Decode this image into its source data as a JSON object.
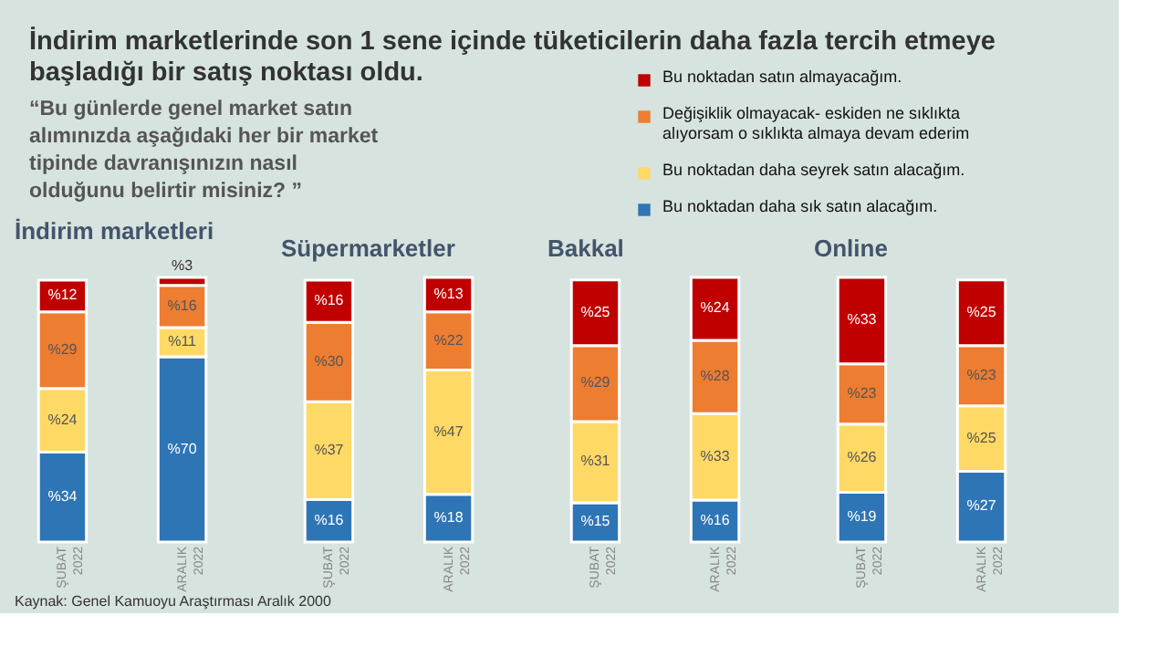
{
  "chart_data": [
    {
      "type": "bar",
      "stacked": true,
      "title": "İndirim marketleri",
      "categories": [
        "ŞUBAT 2022",
        "ARALIK 2022"
      ],
      "legend": "top right",
      "annotations": [
        "İndirim marketlerinde son 1 sene içinde tüketicilerin daha fazla tercih etmeye başladığı bir satış noktası oldu.",
        "“Bu günlerde genel market satın alımınızda aşağıdaki her bir market tipinde davranışınızın nasıl olduğunu belirtir misiniz? ”",
        "Kaynak: Genel Kamuoyu Araştırması Aralık 2000"
      ],
      "series": [
        {
          "name": "Bu noktadan daha sık satın alacağım.",
          "color": "#2e75b6",
          "values": [
            34,
            70
          ],
          "value_labels": [
            "%34",
            "%70"
          ]
        },
        {
          "name": "Bu noktadan daha seyrek satın alacağım.",
          "color": "#ffd966",
          "values": [
            24,
            11
          ],
          "value_labels": [
            "%24",
            "%11"
          ]
        },
        {
          "name": "Değişiklik olmayacak- eskiden ne sıklıkta alıyorsam o sıklıkta almaya  devam ederim",
          "color": "#ed7d31",
          "values": [
            29,
            16
          ],
          "value_labels": [
            "%29",
            "%16"
          ]
        },
        {
          "name": "Bu noktadan satın almayacağım.",
          "color": "#c00000",
          "values": [
            12,
            3
          ],
          "value_labels": [
            "%12",
            "%3"
          ]
        }
      ]
    },
    {
      "type": "bar",
      "stacked": true,
      "title": "Süpermarketler",
      "categories": [
        "ŞUBAT 2022",
        "ARALIK 2022"
      ],
      "series": [
        {
          "color": "#2e75b6",
          "values": [
            16,
            18
          ],
          "value_labels": [
            "%16",
            "%18"
          ]
        },
        {
          "color": "#ffd966",
          "values": [
            37,
            47
          ],
          "value_labels": [
            "%37",
            "%47"
          ]
        },
        {
          "color": "#ed7d31",
          "values": [
            30,
            22
          ],
          "value_labels": [
            "%30",
            "%22"
          ]
        },
        {
          "color": "#c00000",
          "values": [
            16,
            13
          ],
          "value_labels": [
            "%16",
            "%13"
          ]
        }
      ]
    },
    {
      "type": "bar",
      "stacked": true,
      "title": "Bakkal",
      "categories": [
        "ŞUBAT 2022",
        "ARALIK 2022"
      ],
      "series": [
        {
          "color": "#2e75b6",
          "values": [
            15,
            16
          ],
          "value_labels": [
            "%15",
            "%16"
          ]
        },
        {
          "color": "#ffd966",
          "values": [
            31,
            33
          ],
          "value_labels": [
            "%31",
            "%33"
          ]
        },
        {
          "color": "#ed7d31",
          "values": [
            29,
            28
          ],
          "value_labels": [
            "%29",
            "%28"
          ]
        },
        {
          "color": "#c00000",
          "values": [
            25,
            24
          ],
          "value_labels": [
            "%25",
            "%24"
          ]
        }
      ]
    },
    {
      "type": "bar",
      "stacked": true,
      "title": "Online",
      "categories": [
        "ŞUBAT 2022",
        "ARALIK 2022"
      ],
      "series": [
        {
          "color": "#2e75b6",
          "values": [
            19,
            27
          ],
          "value_labels": [
            "%19",
            "%27"
          ]
        },
        {
          "color": "#ffd966",
          "values": [
            26,
            25
          ],
          "value_labels": [
            "%26",
            "%25"
          ]
        },
        {
          "color": "#ed7d31",
          "values": [
            23,
            23
          ],
          "value_labels": [
            "%23",
            "%23"
          ]
        },
        {
          "color": "#c00000",
          "values": [
            33,
            25
          ],
          "value_labels": [
            "%33",
            "%25"
          ]
        }
      ]
    }
  ]
}
